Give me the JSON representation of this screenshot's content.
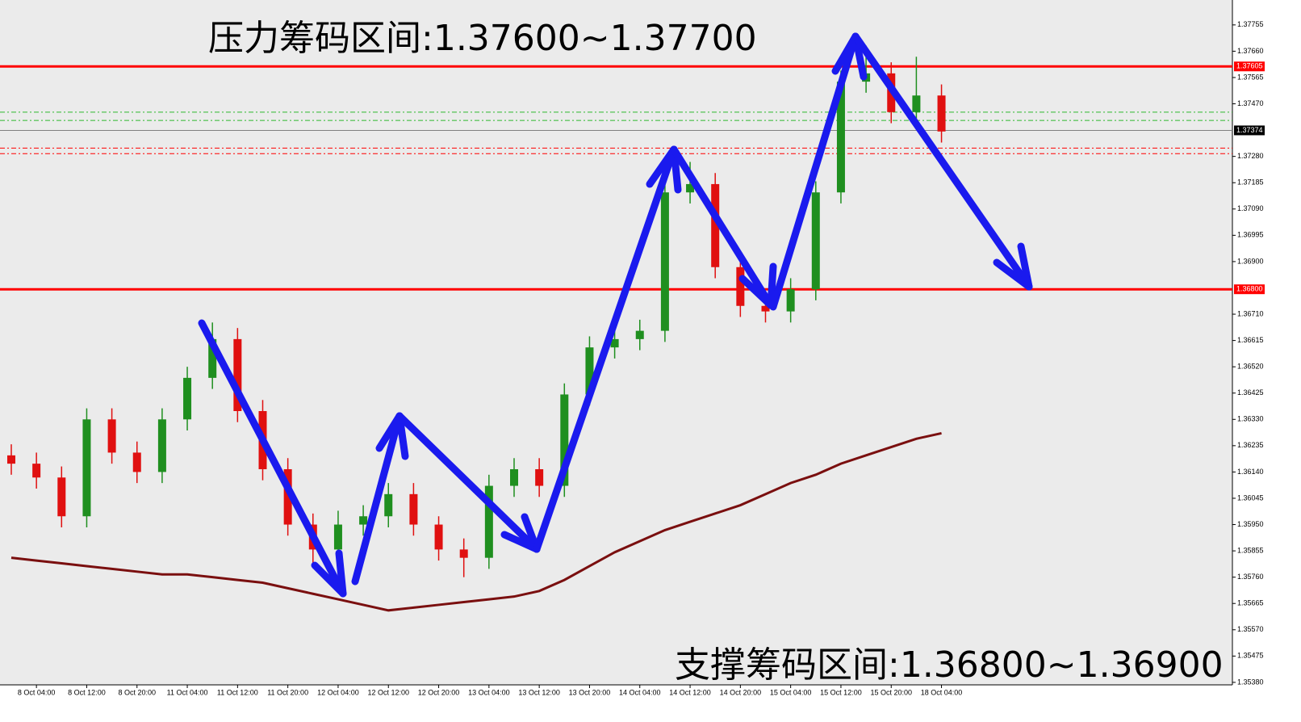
{
  "chart_data": {
    "type": "candlestick",
    "annotations": [
      "压力筹码区间:1.37600~1.37700",
      "支撑筹码区间:1.36800~1.36900"
    ],
    "categories": [
      null,
      "8 Oct 04:00",
      null,
      "8 Oct 12:00",
      null,
      "8 Oct 20:00",
      null,
      "11 Oct 04:00",
      null,
      "11 Oct 12:00",
      null,
      "11 Oct 20:00",
      null,
      "12 Oct 04:00",
      null,
      "12 Oct 12:00",
      null,
      "12 Oct 20:00",
      null,
      "13 Oct 04:00",
      null,
      "13 Oct 12:00",
      null,
      "13 Oct 20:00",
      null,
      "14 Oct 04:00",
      null,
      "14 Oct 12:00",
      null,
      "14 Oct 20:00",
      null,
      "15 Oct 04:00",
      null,
      "15 Oct 12:00",
      null,
      "15 Oct 20:00",
      null,
      "18 Oct 04:00"
    ],
    "open": [
      1.362,
      1.3617,
      1.3612,
      1.3598,
      1.3633,
      1.3621,
      1.3614,
      1.3633,
      1.3648,
      1.3662,
      1.3636,
      1.3615,
      1.3595,
      1.3586,
      1.3595,
      1.3598,
      1.3606,
      1.3595,
      1.3586,
      1.3583,
      1.3609,
      1.3615,
      1.3609,
      1.3642,
      1.3659,
      1.3662,
      1.3665,
      1.3715,
      1.3718,
      1.3688,
      1.3674,
      1.3672,
      1.368,
      1.3715,
      1.3755,
      1.3758,
      1.3744,
      1.375
    ],
    "high": [
      1.3624,
      1.3621,
      1.3616,
      1.3637,
      1.3637,
      1.3625,
      1.3637,
      1.3652,
      1.3668,
      1.3666,
      1.364,
      1.3619,
      1.3599,
      1.36,
      1.3602,
      1.361,
      1.361,
      1.3598,
      1.359,
      1.3613,
      1.3619,
      1.3619,
      1.3646,
      1.3663,
      1.3666,
      1.3669,
      1.3719,
      1.3726,
      1.3722,
      1.3692,
      1.3678,
      1.3684,
      1.3719,
      1.3759,
      1.3768,
      1.3762,
      1.3764,
      1.3754
    ],
    "low": [
      1.3613,
      1.3608,
      1.3594,
      1.3594,
      1.3617,
      1.361,
      1.361,
      1.3629,
      1.3644,
      1.3632,
      1.3611,
      1.3591,
      1.358,
      1.3582,
      1.3591,
      1.3594,
      1.3591,
      1.3582,
      1.3576,
      1.3579,
      1.3605,
      1.3605,
      1.3605,
      1.3638,
      1.3655,
      1.3658,
      1.3661,
      1.3711,
      1.3684,
      1.367,
      1.3668,
      1.3668,
      1.3676,
      1.3711,
      1.3751,
      1.374,
      1.374,
      1.3733
    ],
    "close": [
      1.3617,
      1.3612,
      1.3598,
      1.3633,
      1.3621,
      1.3614,
      1.3633,
      1.3648,
      1.3662,
      1.3636,
      1.3615,
      1.3595,
      1.3586,
      1.3595,
      1.3598,
      1.3606,
      1.3595,
      1.3586,
      1.3583,
      1.3609,
      1.3615,
      1.3609,
      1.3642,
      1.3659,
      1.3662,
      1.3665,
      1.3715,
      1.3718,
      1.3688,
      1.3674,
      1.3672,
      1.368,
      1.3715,
      1.3755,
      1.3758,
      1.3744,
      1.375,
      1.3737
    ],
    "up_color": "#1f8f1f",
    "down_color": "#e01010",
    "series": [
      {
        "color": "#7a0f0f",
        "values": [
          1.3583,
          1.3582,
          1.3581,
          1.358,
          1.3579,
          1.3578,
          1.3577,
          1.3577,
          1.3576,
          1.3575,
          1.3574,
          1.3572,
          1.357,
          1.3568,
          1.3566,
          1.3564,
          1.3565,
          1.3566,
          1.3567,
          1.3568,
          1.3569,
          1.3571,
          1.3575,
          1.358,
          1.3585,
          1.3589,
          1.3593,
          1.3596,
          1.3599,
          1.3602,
          1.3606,
          1.361,
          1.3613,
          1.3617,
          1.362,
          1.3623,
          1.3626,
          1.3628
        ]
      }
    ],
    "levels": [
      {
        "value": 1.37605,
        "label": "1.37605",
        "color": "#ff0000",
        "style": "solid"
      },
      {
        "value": 1.368,
        "label": "1.36800",
        "color": "#ff0000",
        "style": "solid"
      },
      {
        "value": 1.37374,
        "label": "1.37374",
        "color": "#808080",
        "style": "solid",
        "box": "#000000"
      },
      {
        "value": 1.3744,
        "color": "#2db82d",
        "style": "dashdot"
      },
      {
        "value": 1.3741,
        "color": "#2db82d",
        "style": "dashdot"
      },
      {
        "value": 1.3731,
        "color": "#ff0000",
        "style": "dashdot"
      },
      {
        "value": 1.3729,
        "color": "#ff0000",
        "style": "dashdot"
      }
    ],
    "ylim": [
      1.35371,
      1.37845
    ],
    "yticks": [
      1.37755,
      {
        "value": 1.3766,
        "label": "1.37660"
      },
      1.37565,
      {
        "value": 1.3747,
        "label": "1.37470"
      },
      {
        "value": 1.3728,
        "label": "1.37280"
      },
      1.37185,
      {
        "value": 1.3709,
        "label": "1.37090"
      },
      1.36995,
      {
        "value": 1.369,
        "label": "1.36900"
      },
      {
        "value": 1.3671,
        "label": "1.36710"
      },
      1.36615,
      {
        "value": 1.3652,
        "label": "1.36520"
      },
      1.36425,
      {
        "value": 1.3633,
        "label": "1.36330"
      },
      1.36235,
      {
        "value": 1.3614,
        "label": "1.36140"
      },
      1.36045,
      {
        "value": 1.3595,
        "label": "1.35950"
      },
      1.35855,
      {
        "value": 1.3576,
        "label": "1.35760"
      },
      1.35665,
      {
        "value": 1.3557,
        "label": "1.35570"
      },
      1.35475,
      {
        "value": 1.3538,
        "label": "1.35380"
      }
    ]
  }
}
